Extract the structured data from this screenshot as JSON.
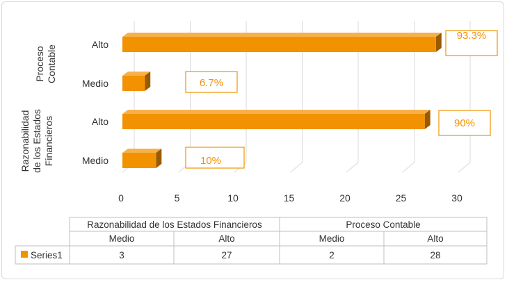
{
  "chart_data": {
    "type": "bar",
    "orientation": "horizontal",
    "style": "3d",
    "color": "#f39200",
    "groups": [
      {
        "name": "Razonabilidad de los Estados Financieros",
        "categories": [
          "Medio",
          "Alto"
        ],
        "values": [
          3,
          27
        ],
        "labels": [
          "10%",
          "90%"
        ]
      },
      {
        "name": "Proceso Contable",
        "categories": [
          "Medio",
          "Alto"
        ],
        "values": [
          2,
          28
        ],
        "labels": [
          "6.7%",
          "93.3%"
        ]
      }
    ],
    "series": [
      {
        "name": "Series1",
        "values": [
          3,
          27,
          2,
          28
        ]
      }
    ],
    "xlim": [
      0,
      30
    ],
    "xticks": [
      "0",
      "5",
      "10",
      "15",
      "20",
      "25",
      "30"
    ],
    "grid": true,
    "data_table": {
      "group_headers": [
        "Razonabilidad de los Estados Financieros",
        "Proceso Contable"
      ],
      "category_headers": [
        "Medio",
        "Alto",
        "Medio",
        "Alto"
      ],
      "series_label": "Series1",
      "values": [
        "3",
        "27",
        "2",
        "28"
      ]
    }
  }
}
